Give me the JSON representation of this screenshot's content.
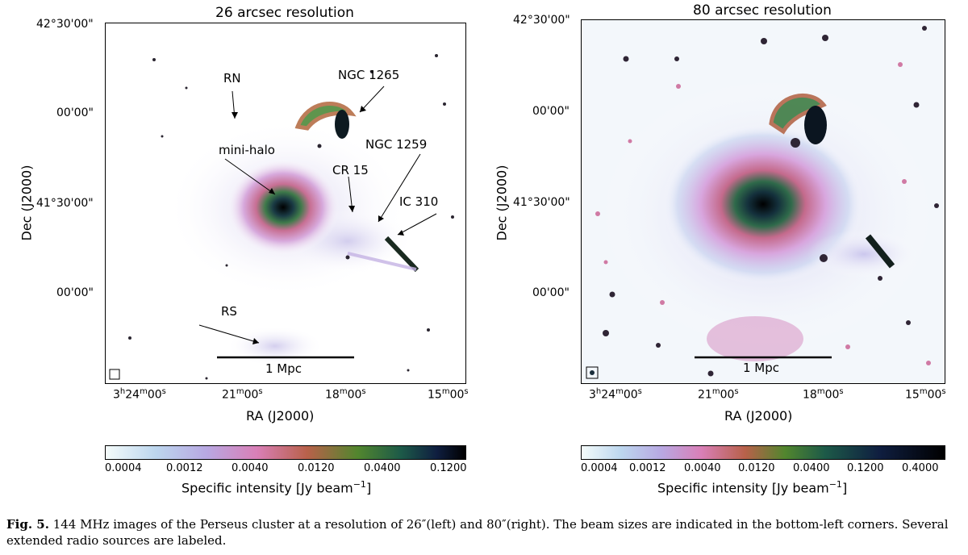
{
  "figure": {
    "left_panel": {
      "title": "26 arcsec resolution",
      "dec_ticks": [
        "42°30'00\"",
        "00'00\"",
        "41°30'00\"",
        "00'00\""
      ],
      "ra_ticks": [
        "3h24m00s",
        "21m00s",
        "18m00s",
        "15m00s"
      ],
      "ra_ticks_parts": [
        {
          "a": "3",
          "h": "h",
          "b": "24",
          "m": "m",
          "c": "00",
          "s": "s"
        },
        {
          "b": "21",
          "m": "m",
          "c": "00",
          "s": "s"
        },
        {
          "b": "18",
          "m": "m",
          "c": "00",
          "s": "s"
        },
        {
          "b": "15",
          "m": "m",
          "c": "00",
          "s": "s"
        }
      ],
      "xlabel": "RA (J2000)",
      "ylabel": "Dec (J2000)",
      "scalebar_label": "1 Mpc",
      "annotations": [
        "RN",
        "NGC 1265",
        "NGC 1259",
        "mini-halo",
        "CR 15",
        "IC 310",
        "RS"
      ],
      "colorbar": {
        "ticks": [
          "0.0004",
          "0.0012",
          "0.0040",
          "0.0120",
          "0.0400",
          "0.1200"
        ],
        "label_main": "Specific intensity [Jy beam",
        "label_exp": "−1",
        "label_close": "]"
      }
    },
    "right_panel": {
      "title": "80 arcsec resolution",
      "dec_ticks": [
        "42°30'00\"",
        "00'00\"",
        "41°30'00\"",
        "00'00\""
      ],
      "ra_ticks_parts": [
        {
          "a": "3",
          "h": "h",
          "b": "24",
          "m": "m",
          "c": "00",
          "s": "s"
        },
        {
          "b": "21",
          "m": "m",
          "c": "00",
          "s": "s"
        },
        {
          "b": "18",
          "m": "m",
          "c": "00",
          "s": "s"
        },
        {
          "b": "15",
          "m": "m",
          "c": "00",
          "s": "s"
        }
      ],
      "xlabel": "RA (J2000)",
      "ylabel": "Dec (J2000)",
      "scalebar_label": "1 Mpc",
      "colorbar": {
        "ticks": [
          "0.0004",
          "0.0012",
          "0.0040",
          "0.0120",
          "0.0400",
          "0.1200",
          "0.4000"
        ],
        "label_main": "Specific intensity [Jy beam",
        "label_exp": "−1",
        "label_close": "]"
      }
    },
    "caption": {
      "label": "Fig. 5.",
      "text": " 144 MHz images of the Perseus cluster at a resolution of 26″(left) and 80″(right). The beam sizes are indicated in the bottom-left corners. Several extended radio sources are labeled."
    }
  }
}
